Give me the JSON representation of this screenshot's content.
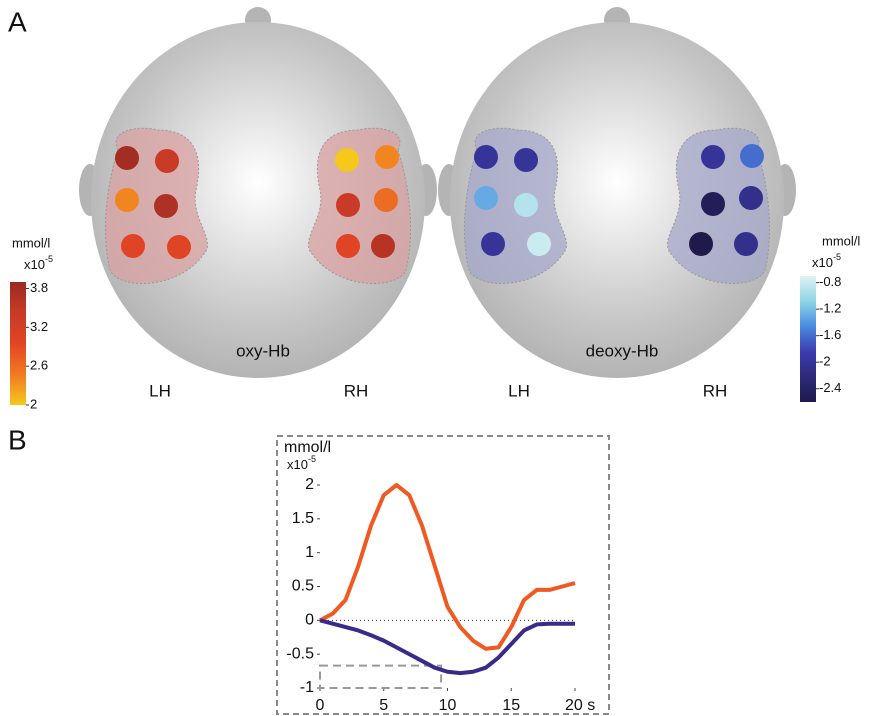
{
  "panel_labels": [
    "A",
    "B"
  ],
  "chart_data": [
    {
      "type": "topo",
      "title": "oxy-Hb",
      "hemispheres": [
        "LH",
        "RH"
      ],
      "values": [
        3.8,
        3.4,
        2.4,
        3.7,
        3.0,
        3.0,
        2.0,
        2.4,
        3.4,
        2.6,
        3.0,
        3.6
      ],
      "region_color": "#d9a0a0",
      "colorbar": {
        "unit": "mmol/l",
        "scale": "x10",
        "exponent": "-5",
        "clim": [
          2,
          3.9
        ],
        "cticks": [
          3.8,
          3.2,
          2.6,
          2
        ],
        "colors": [
          "#f7c81c",
          "#f07a22",
          "#e24524",
          "#c83a26",
          "#9a2a22"
        ]
      }
    },
    {
      "type": "topo",
      "title": "deoxy-Hb",
      "hemispheres": [
        "LH",
        "RH"
      ],
      "values": [
        -2.0,
        -2.0,
        -1.3,
        -0.9,
        -2.0,
        -0.8,
        -2.0,
        -1.6,
        -2.5,
        -2.1,
        -2.6,
        -2.1
      ],
      "region_color": "#a4a8c8",
      "colorbar": {
        "unit": "mmol/l",
        "scale": "x10",
        "exponent": "-5",
        "clim": [
          -2.6,
          -0.7
        ],
        "cticks": [
          -2.4,
          -2,
          -1.6,
          -1.2,
          -0.8
        ],
        "colors": [
          "#1f1a4a",
          "#2e2a7a",
          "#3c3cb0",
          "#4a8ae0",
          "#8ed6e6",
          "#dff2f2"
        ]
      }
    },
    {
      "type": "line",
      "ylabel": "mmol/l",
      "scale": "x10",
      "exponent": "-5",
      "x": [
        0,
        1,
        2,
        3,
        4,
        5,
        6,
        7,
        8,
        9,
        10,
        11,
        12,
        13,
        14,
        15,
        16,
        17,
        18,
        19,
        20
      ],
      "series": [
        {
          "color": "#f05a22",
          "values": [
            0,
            0.1,
            0.3,
            0.8,
            1.4,
            1.85,
            2.0,
            1.85,
            1.4,
            0.8,
            0.2,
            -0.1,
            -0.3,
            -0.42,
            -0.4,
            -0.1,
            0.3,
            0.45,
            0.45,
            0.5,
            0.55
          ]
        },
        {
          "color": "#3a2a8a",
          "values": [
            0,
            -0.05,
            -0.1,
            -0.15,
            -0.22,
            -0.3,
            -0.4,
            -0.5,
            -0.6,
            -0.7,
            -0.76,
            -0.78,
            -0.76,
            -0.7,
            -0.55,
            -0.35,
            -0.15,
            -0.06,
            -0.05,
            -0.05,
            -0.05
          ]
        }
      ],
      "xlim": [
        0,
        20
      ],
      "xticks": [
        0,
        5,
        10,
        15,
        {
          "value": 20,
          "label": "20 s"
        }
      ],
      "ylim": [
        -1,
        2
      ],
      "yticks": [
        2,
        1.5,
        1,
        0.5,
        0,
        -0.5,
        -1
      ]
    }
  ]
}
